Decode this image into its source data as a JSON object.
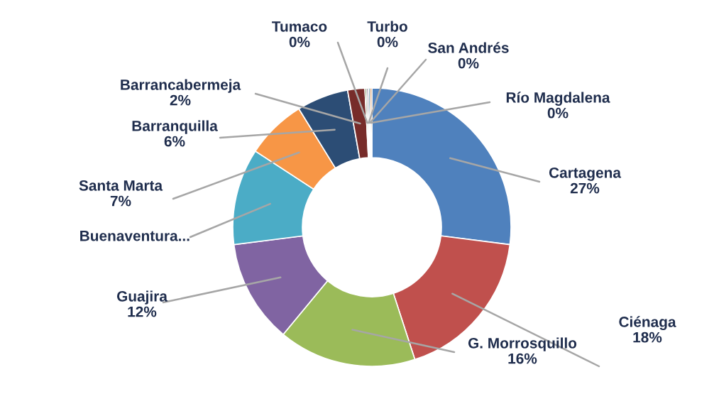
{
  "chart_data": {
    "type": "donut",
    "categories": [
      "Cartagena",
      "Ciénaga",
      "G. Morrosquillo",
      "Guajira",
      "Buenaventura...",
      "Santa Marta",
      "Barranquilla",
      "Barrancabermeja",
      "Tumaco",
      "Turbo",
      "San Andrés",
      "Río Magdalena"
    ],
    "values": [
      27,
      18,
      16,
      12,
      11.2,
      7,
      6,
      2,
      0.2,
      0.2,
      0.2,
      0.2
    ],
    "value_labels": [
      "27%",
      "18%",
      "16%",
      "12%",
      null,
      "7%",
      "6%",
      "2%",
      "0%",
      "0%",
      "0%",
      "0%"
    ],
    "colors": [
      "#4f81bd",
      "#c0504d",
      "#9bbb59",
      "#8064a2",
      "#4bacc6",
      "#f79646",
      "#2c4d75",
      "#772c2a",
      "#5f7530",
      "#4d3b62",
      "#276a7c",
      "#b65708"
    ],
    "legend": false
  }
}
